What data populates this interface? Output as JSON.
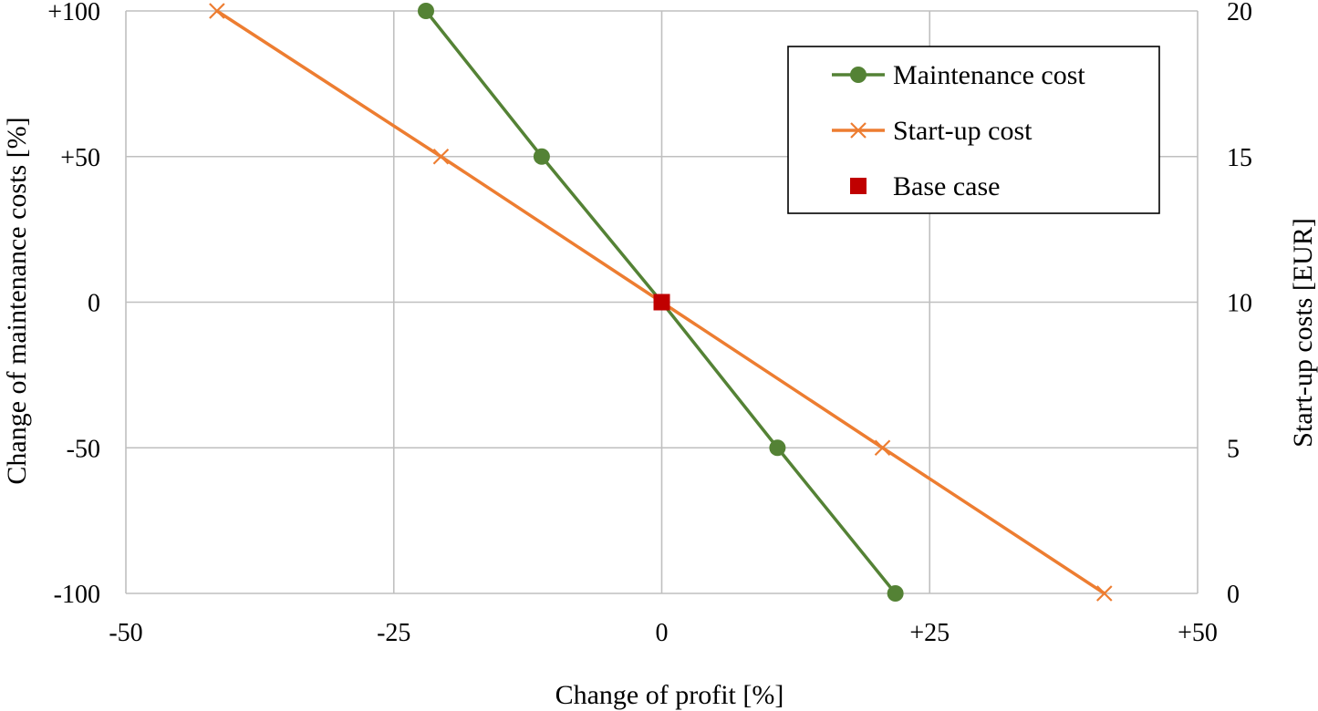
{
  "chart_data": {
    "type": "line",
    "xlabel": "Change of profit [%]",
    "ylabel": "Change of maintenance costs [%]",
    "y2label": "Start-up costs [EUR]",
    "xlim": [
      -50,
      50
    ],
    "ylim": [
      -100,
      100
    ],
    "y2lim": [
      0,
      20
    ],
    "grid": true,
    "legend_position": "top-right",
    "x_ticks": [
      {
        "value": -50,
        "label": "-50"
      },
      {
        "value": -25,
        "label": "-25"
      },
      {
        "value": 0,
        "label": "0"
      },
      {
        "value": 25,
        "label": "+25"
      },
      {
        "value": 50,
        "label": "+50"
      }
    ],
    "y_ticks": [
      {
        "value": 100,
        "label": "+100"
      },
      {
        "value": 50,
        "label": "+50"
      },
      {
        "value": 0,
        "label": "0"
      },
      {
        "value": -50,
        "label": "-50"
      },
      {
        "value": -100,
        "label": "-100"
      }
    ],
    "y2_ticks": [
      {
        "value": 20,
        "label": "20"
      },
      {
        "value": 15,
        "label": "15"
      },
      {
        "value": 10,
        "label": "10"
      },
      {
        "value": 5,
        "label": "5"
      },
      {
        "value": 0,
        "label": "0"
      }
    ],
    "series": [
      {
        "name": "Maintenance cost",
        "axis": "left",
        "color": "#548235",
        "marker": "circle",
        "points": [
          {
            "x": -22,
            "y": 100
          },
          {
            "x": -11.2,
            "y": 50
          },
          {
            "x": 0,
            "y": 0
          },
          {
            "x": 10.8,
            "y": -50
          },
          {
            "x": 21.8,
            "y": -100
          }
        ]
      },
      {
        "name": "Start-up cost",
        "axis": "right",
        "color": "#ED7D31",
        "marker": "x",
        "points": [
          {
            "x": -41.5,
            "y": 20
          },
          {
            "x": -20.6,
            "y": 15
          },
          {
            "x": 0,
            "y": 10
          },
          {
            "x": 20.6,
            "y": 5
          },
          {
            "x": 41.3,
            "y": 0
          }
        ]
      },
      {
        "name": "Base case",
        "axis": "left",
        "color": "#C00000",
        "marker": "square",
        "points": [
          {
            "x": 0,
            "y": 0
          }
        ]
      }
    ]
  }
}
